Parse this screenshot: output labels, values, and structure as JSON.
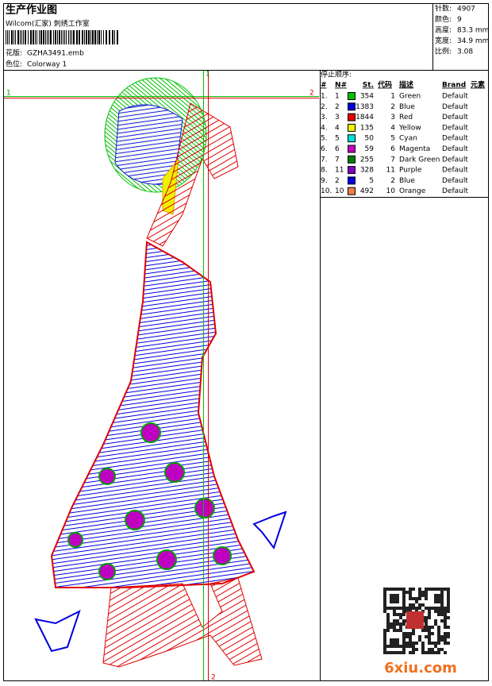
{
  "header": {
    "title": "生产作业图",
    "company": "Wilcom(汇家) 刺绣工作室",
    "design_label": "花版:",
    "design": "GZHA3491.emb",
    "colorway_label": "色位:",
    "colorway": "Colorway 1"
  },
  "stats": [
    [
      "针数:",
      "4907"
    ],
    [
      "颜色:",
      "9"
    ],
    [
      "高度:",
      "83.3 mm"
    ],
    [
      "宽度:",
      "34.9 mm"
    ],
    [
      "比例:",
      "3.08"
    ]
  ],
  "sequence": {
    "title": "停止顺序:",
    "headers": [
      "#",
      "N#",
      "St.",
      "代码",
      "描述",
      "Brand",
      "元素"
    ],
    "rows": [
      {
        "index": "1.",
        "n": 1,
        "color": "#00c000",
        "stitches": 354,
        "code": 1,
        "description": "Green",
        "brand": "Default"
      },
      {
        "index": "2.",
        "n": 2,
        "color": "#0000e0",
        "stitches": 1383,
        "code": 2,
        "description": "Blue",
        "brand": "Default"
      },
      {
        "index": "3.",
        "n": 3,
        "color": "#e00000",
        "stitches": 1844,
        "code": 3,
        "description": "Red",
        "brand": "Default"
      },
      {
        "index": "4.",
        "n": 4,
        "color": "#f0f000",
        "stitches": 135,
        "code": 4,
        "description": "Yellow",
        "brand": "Default"
      },
      {
        "index": "5.",
        "n": 5,
        "color": "#00e0e0",
        "stitches": 50,
        "code": 5,
        "description": "Cyan",
        "brand": "Default"
      },
      {
        "index": "6.",
        "n": 6,
        "color": "#c000c0",
        "stitches": 59,
        "code": 6,
        "description": "Magenta",
        "brand": "Default"
      },
      {
        "index": "7.",
        "n": 7,
        "color": "#008000",
        "stitches": 255,
        "code": 7,
        "description": "Dark Green",
        "brand": "Default"
      },
      {
        "index": "8.",
        "n": 11,
        "color": "#8000c0",
        "stitches": 328,
        "code": 11,
        "description": "Purple",
        "brand": "Default"
      },
      {
        "index": "9.",
        "n": 2,
        "color": "#0000e0",
        "stitches": 5,
        "code": 2,
        "description": "Blue",
        "brand": "Default"
      },
      {
        "index": "10.",
        "n": 10,
        "color": "#f08040",
        "stitches": 492,
        "code": 10,
        "description": "Orange",
        "brand": "Default"
      }
    ]
  },
  "markers": {
    "left": "1",
    "right": "2",
    "top": "1",
    "bottom": "2"
  },
  "watermark": "6xiu.com"
}
